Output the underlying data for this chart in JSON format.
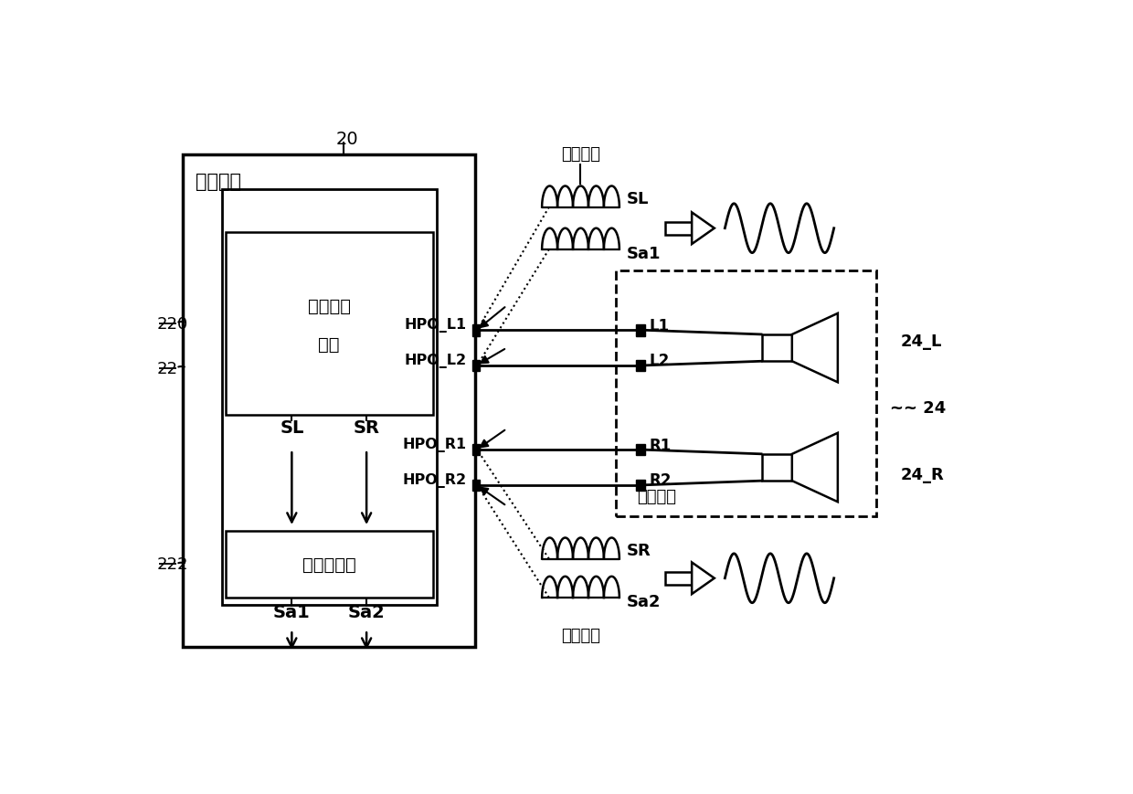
{
  "bg_color": "#ffffff",
  "line_color": "#000000",
  "fig_width": 12.4,
  "fig_height": 8.7,
  "dpi": 100,
  "labels": {
    "ic_label": "集成电路",
    "audio_label1": "音频处理",
    "audio_label2": "电路",
    "phase_label": "相位调整器",
    "earphone_label": "耳机单体",
    "ic_number": "20",
    "audio_number": "220",
    "phase_number": "222",
    "input_number": "22",
    "hpo_l1": "HPO_L1",
    "hpo_l2": "HPO_L2",
    "hpo_r1": "HPO_R1",
    "hpo_r2": "HPO_R2",
    "sl_top": "SL",
    "sa1_label": "Sa1",
    "sr_bottom": "SR",
    "sa2_label": "Sa2",
    "l1_label": "L1",
    "l2_label": "L2",
    "r1_label": "R1",
    "r2_label": "R2",
    "label_24": "24",
    "label_24L": "24_L",
    "label_24R": "24_R",
    "radiation_top": "辐射干扰",
    "radiation_bottom": "辐射干扰",
    "sl_inner": "SL",
    "sr_inner": "SR"
  }
}
